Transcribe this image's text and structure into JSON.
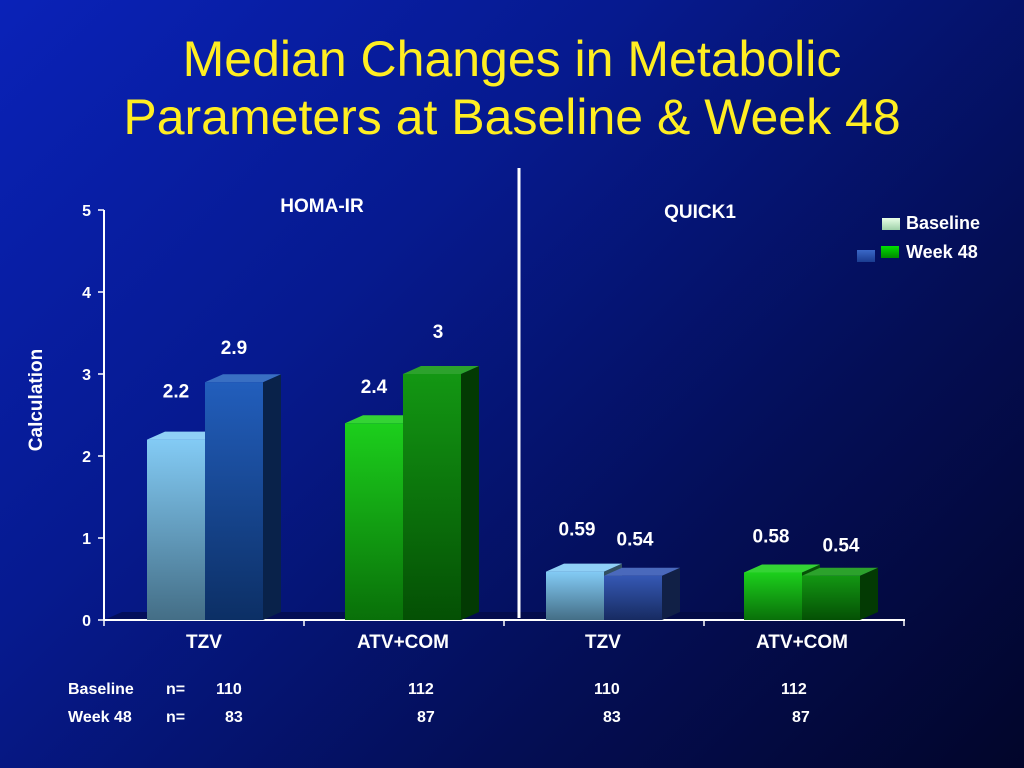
{
  "title": {
    "line1": "Median Changes in Metabolic",
    "line2": "Parameters at Baseline & Week 48"
  },
  "chart_data": {
    "type": "bar",
    "ylabel": "Calculation",
    "ylim": [
      0,
      5
    ],
    "yticks": [
      "0",
      "1",
      "2",
      "3",
      "4",
      "5"
    ],
    "panels": [
      "HOMA-IR",
      "QUICK1"
    ],
    "categories": [
      "TZV",
      "ATV+COM",
      "TZV",
      "ATV+COM"
    ],
    "category_panel": [
      0,
      0,
      1,
      1
    ],
    "series": [
      {
        "name": "Baseline",
        "values": [
          2.2,
          2.4,
          0.59,
          0.58
        ],
        "labels": [
          "2.2",
          "2.4",
          "0.59",
          "0.58"
        ]
      },
      {
        "name": "Week 48",
        "values": [
          2.9,
          3.0,
          0.54,
          0.54
        ],
        "labels": [
          "2.9",
          "3",
          "0.54",
          "0.54"
        ]
      }
    ],
    "legend": {
      "position": "top-right",
      "entries": [
        "Baseline",
        "Week 48"
      ]
    },
    "colors": {
      "tzv_baseline": "#7cc8f4",
      "tzv_week48": "#1656b8",
      "atv_baseline": "#10cc10",
      "atv_week48": "#079207",
      "quick_tzv_week48": "#2a4fb0"
    },
    "grid": false
  },
  "n_table": {
    "rows": [
      {
        "label": "Baseline",
        "prefix": "n=",
        "values": [
          "110",
          "112",
          "110",
          "112"
        ]
      },
      {
        "label": "Week 48",
        "prefix": "n=",
        "values": [
          "83",
          "87",
          "83",
          "87"
        ]
      }
    ]
  }
}
